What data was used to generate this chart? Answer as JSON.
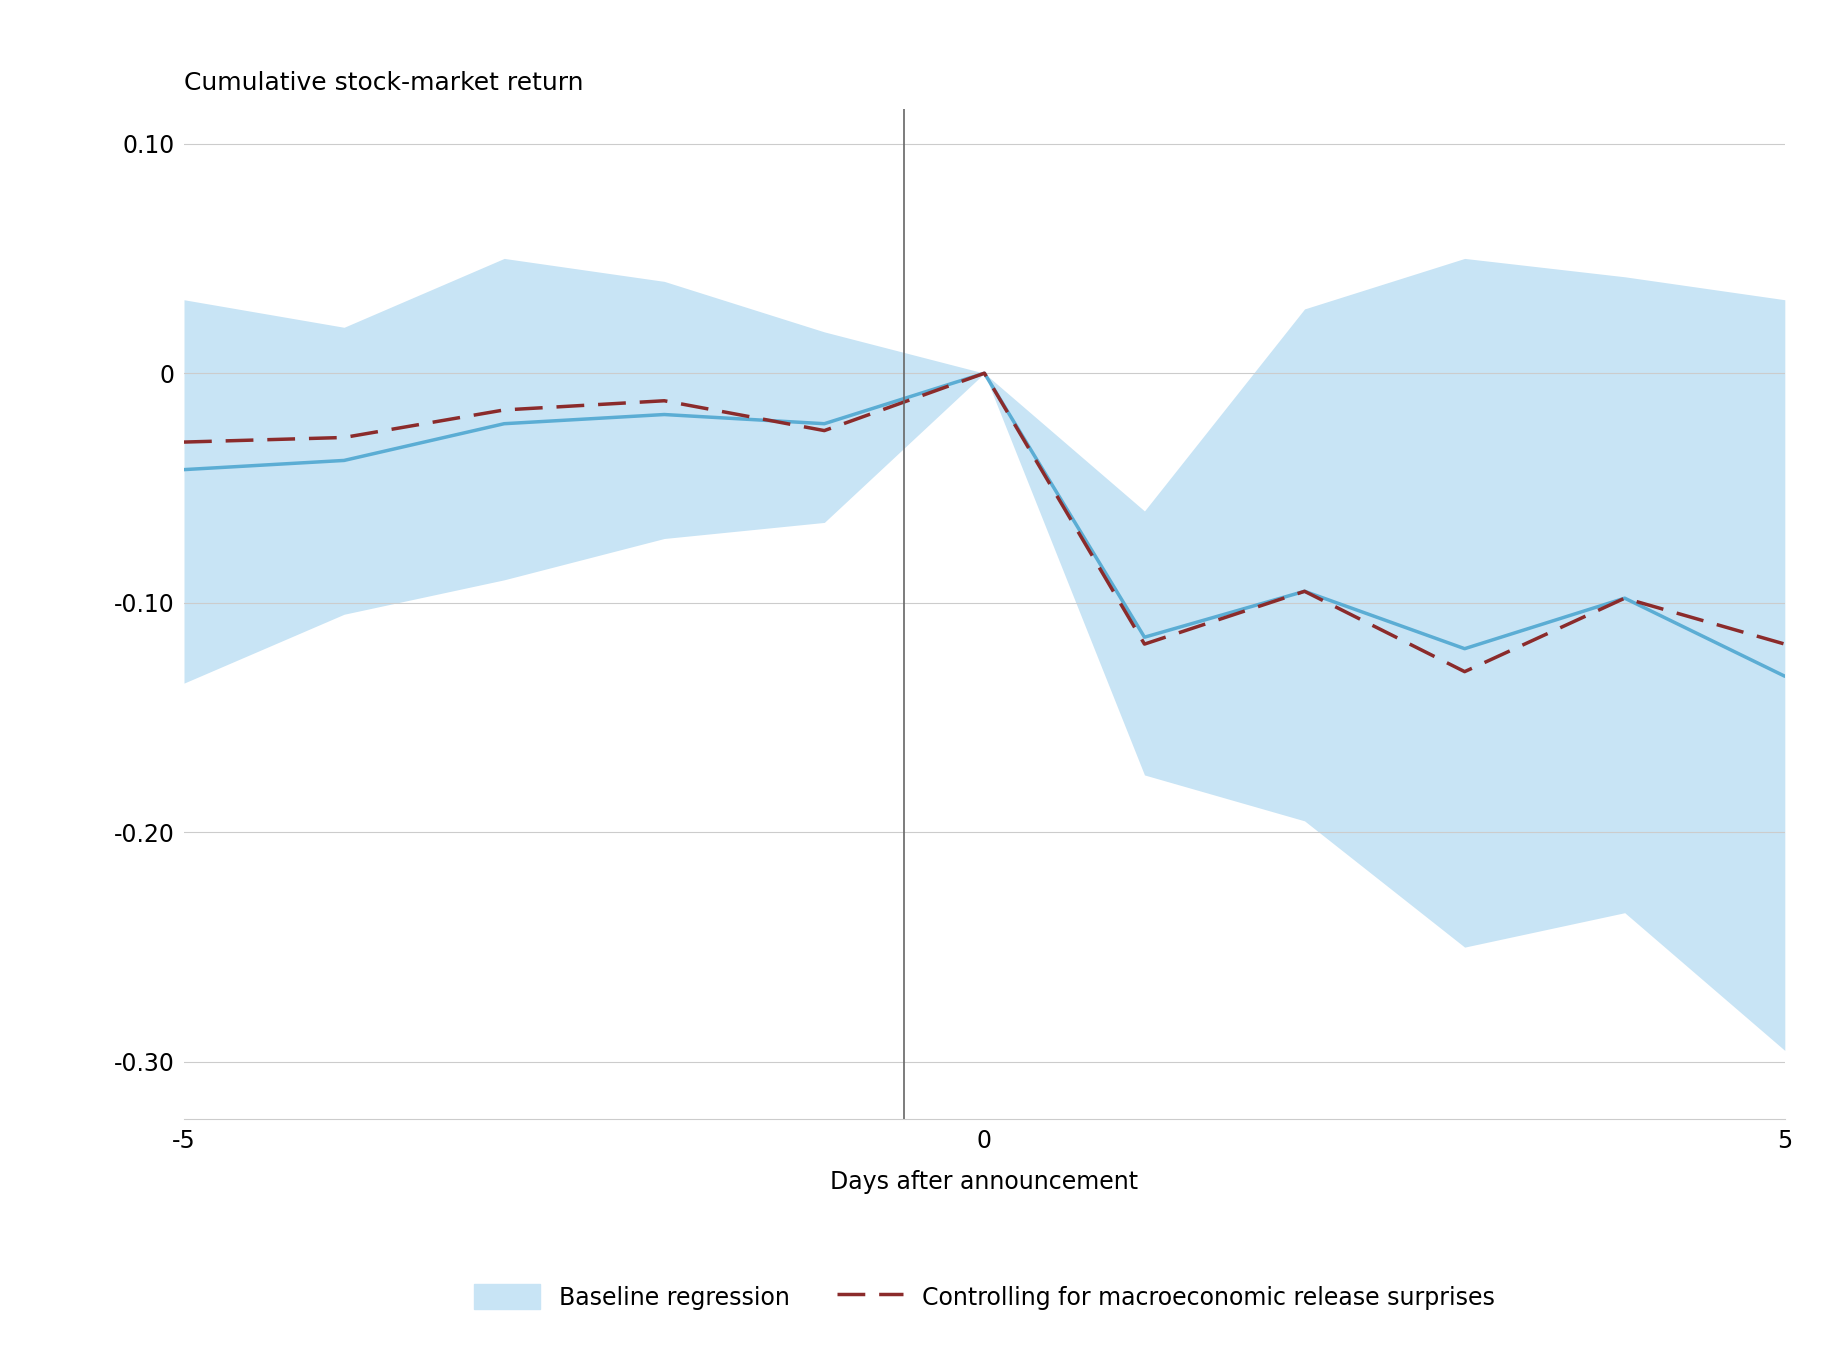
{
  "x": [
    -5,
    -4,
    -3,
    -2,
    -1,
    0,
    1,
    2,
    3,
    4,
    5
  ],
  "blue_line": [
    -0.042,
    -0.038,
    -0.022,
    -0.018,
    -0.022,
    0.0,
    -0.115,
    -0.095,
    -0.12,
    -0.098,
    -0.132
  ],
  "red_line": [
    -0.03,
    -0.028,
    -0.016,
    -0.012,
    -0.025,
    0.0,
    -0.118,
    -0.095,
    -0.13,
    -0.098,
    -0.118
  ],
  "ci_upper": [
    0.032,
    0.02,
    0.05,
    0.04,
    0.018,
    0.0,
    -0.06,
    0.028,
    0.05,
    0.042,
    0.032
  ],
  "ci_lower": [
    -0.135,
    -0.105,
    -0.09,
    -0.072,
    -0.065,
    0.0,
    -0.175,
    -0.195,
    -0.25,
    -0.235,
    -0.295
  ],
  "title": "Cumulative stock-market return",
  "xlabel": "Days after announcement",
  "xlim": [
    -5,
    5
  ],
  "ylim": [
    -0.325,
    0.115
  ],
  "yticks": [
    0.1,
    0.0,
    -0.1,
    -0.2,
    -0.3
  ],
  "ytick_labels": [
    "0.10",
    "0",
    "-0.10",
    "-0.20",
    "-0.30"
  ],
  "xticks": [
    -5,
    -4,
    -3,
    -2,
    -1,
    0,
    1,
    2,
    3,
    4,
    5
  ],
  "xtick_labels": [
    "-5",
    "",
    "",
    "",
    "",
    "0",
    "",
    "",
    "",
    "",
    "5"
  ],
  "vline_x": -0.5,
  "blue_color": "#5badd4",
  "blue_fill_color": "#c8e4f5",
  "red_color": "#8b2b2b",
  "legend_blue_label": "Baseline regression",
  "legend_red_label": "Controlling for macroeconomic release surprises",
  "title_fontsize": 18,
  "label_fontsize": 17,
  "tick_fontsize": 17,
  "legend_fontsize": 17
}
